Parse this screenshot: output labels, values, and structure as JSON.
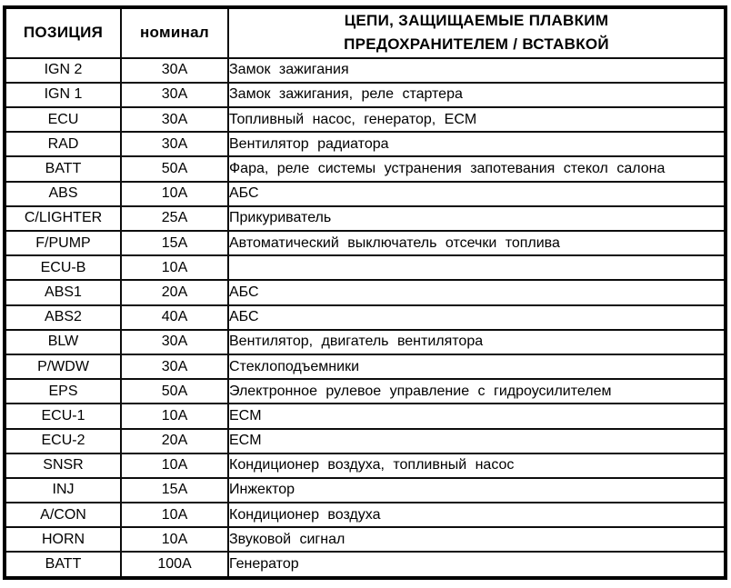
{
  "table": {
    "headers": {
      "position": "ПОЗИЦИЯ",
      "rating": "номинал",
      "circuits_line1": "ЦЕПИ, ЗАЩИЩАЕМЫЕ ПЛАВКИМ",
      "circuits_line2": "ПРЕДОХРАНИТЕЛЕМ / ВСТАВКОЙ"
    },
    "rows": [
      {
        "position": "IGN 2",
        "rating": "30A",
        "circuits": "Замок зажигания"
      },
      {
        "position": "IGN 1",
        "rating": "30A",
        "circuits": "Замок зажигания, реле стартера"
      },
      {
        "position": "ECU",
        "rating": "30A",
        "circuits": "Топливный насос, генератор, ECM"
      },
      {
        "position": "RAD",
        "rating": "30A",
        "circuits": "Вентилятор радиатора"
      },
      {
        "position": "BATT",
        "rating": "50A",
        "circuits": "Фара, реле системы устранения запотевания стекол салона"
      },
      {
        "position": "ABS",
        "rating": "10A",
        "circuits": "АБС"
      },
      {
        "position": "C/LIGHTER",
        "rating": "25A",
        "circuits": "Прикуриватель"
      },
      {
        "position": "F/PUMP",
        "rating": "15A",
        "circuits": "Автоматический выключатель отсечки топлива"
      },
      {
        "position": "ECU-B",
        "rating": "10A",
        "circuits": ""
      },
      {
        "position": "ABS1",
        "rating": "20A",
        "circuits": "АБС"
      },
      {
        "position": "ABS2",
        "rating": "40A",
        "circuits": "АБС"
      },
      {
        "position": "BLW",
        "rating": "30A",
        "circuits": "Вентилятор, двигатель вентилятора"
      },
      {
        "position": "P/WDW",
        "rating": "30A",
        "circuits": "Стеклоподъемники"
      },
      {
        "position": "EPS",
        "rating": "50A",
        "circuits": "Электронное рулевое управление с гидроусилителем"
      },
      {
        "position": "ECU-1",
        "rating": "10A",
        "circuits": "ECM"
      },
      {
        "position": "ECU-2",
        "rating": "20A",
        "circuits": "ECM"
      },
      {
        "position": "SNSR",
        "rating": "10A",
        "circuits": "Кондиционер воздуха, топливный насос"
      },
      {
        "position": "INJ",
        "rating": "15A",
        "circuits": "Инжектор"
      },
      {
        "position": "A/CON",
        "rating": "10A",
        "circuits": "Кондиционер воздуха"
      },
      {
        "position": "HORN",
        "rating": "10A",
        "circuits": "Звуковой сигнал"
      },
      {
        "position": "BATT",
        "rating": "100A",
        "circuits": "Генератор"
      }
    ]
  },
  "colors": {
    "border": "#000000",
    "text": "#000000",
    "background": "#ffffff"
  }
}
